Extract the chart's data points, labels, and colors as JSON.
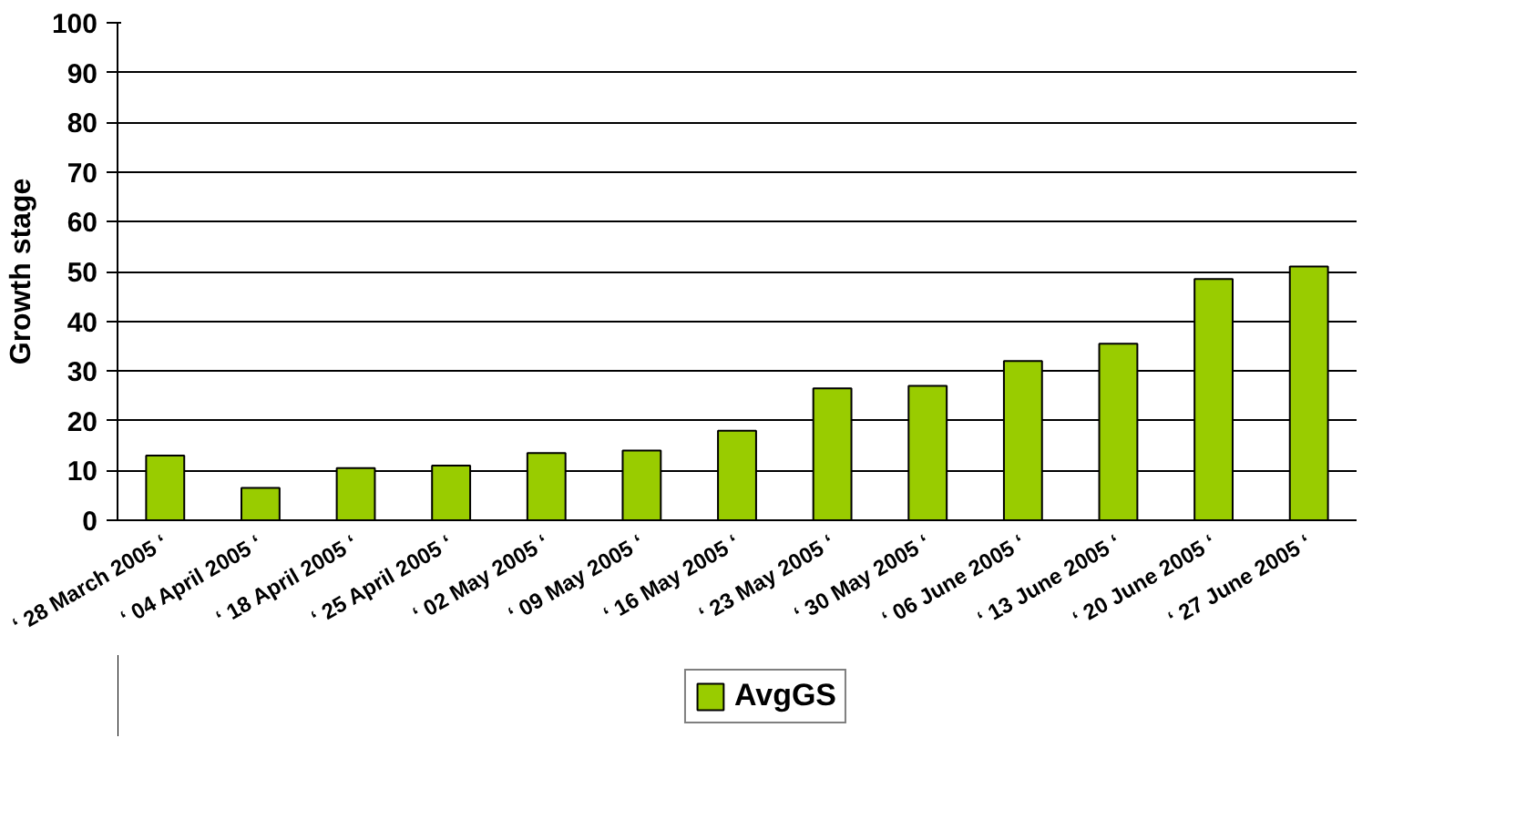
{
  "chart_data": {
    "type": "bar",
    "ylabel": "Growth stage",
    "categories": [
      "‘ 28 March 2005 ‘",
      "‘ 04 April 2005 ‘",
      "‘ 18 April 2005 ‘",
      "‘ 25 April 2005 ‘",
      "‘ 02 May 2005 ‘",
      "‘ 09 May 2005 ‘",
      "‘ 16 May 2005 ‘",
      "‘ 23 May 2005 ‘",
      "‘ 30 May 2005 ‘",
      "‘ 06 June 2005 ‘",
      "‘ 13 June 2005 ‘",
      "‘ 20 June 2005 ‘",
      "‘ 27 June 2005 ‘"
    ],
    "series": [
      {
        "name": "AvgGS",
        "color": "#99cc00",
        "values": [
          13,
          6.5,
          10.5,
          11,
          13.5,
          14,
          18,
          26.5,
          27,
          32,
          35.5,
          48.5,
          51
        ]
      }
    ],
    "ylim": [
      0,
      100
    ],
    "yticks": [
      0,
      10,
      20,
      30,
      40,
      50,
      60,
      70,
      80,
      90,
      100
    ],
    "grid": "y",
    "legend": "bottom"
  }
}
